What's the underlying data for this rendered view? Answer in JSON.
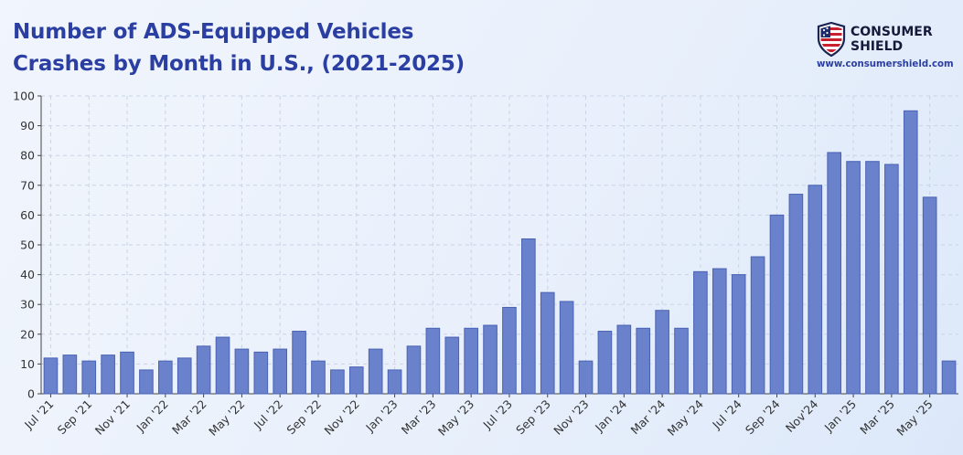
{
  "header": {
    "title_line1": "Number of ADS-Equipped Vehicles",
    "title_line2": "Crashes by Month in U.S., (2021-2025)"
  },
  "brand": {
    "name_line1": "CONSUMER",
    "name_line2": "SHIELD",
    "url": "www.consumershield.com"
  },
  "colors": {
    "title": "#2b3fa2",
    "bar_fill": "#6a81cb",
    "bar_stroke": "#4a62b5",
    "grid": "#c9d3e6"
  },
  "chart_data": {
    "type": "bar",
    "title": "Number of ADS-Equipped Vehicles Crashes by Month in U.S., (2021-2025)",
    "xlabel": "",
    "ylabel": "",
    "ylim": [
      0,
      100
    ],
    "yticks": [
      0,
      10,
      20,
      30,
      40,
      50,
      60,
      70,
      80,
      90,
      100
    ],
    "grid": true,
    "categories": [
      "Jul '21",
      "Aug '21",
      "Sep '21",
      "Oct '21",
      "Nov '21",
      "Dec '21",
      "Jan '22",
      "Feb '22",
      "Mar '22",
      "Apr '22",
      "May '22",
      "Jun '22",
      "Jul '22",
      "Aug '22",
      "Sep '22",
      "Oct '22",
      "Nov '22",
      "Dec '22",
      "Jan '23",
      "Feb '23",
      "Mar '23",
      "Apr '23",
      "May '23",
      "Jun '23",
      "Jul '23",
      "Aug '23",
      "Sep '23",
      "Oct '23",
      "Nov '23",
      "Dec '23",
      "Jan '24",
      "Feb '24",
      "Mar '24",
      "Apr '24",
      "May '24",
      "Jun '24",
      "Jul '24",
      "Aug '24",
      "Sep '24",
      "Oct '24",
      "Nov '24",
      "Dec '24",
      "Jan '25",
      "Feb '25",
      "Mar '25",
      "Apr '25",
      "May '25",
      "Jun '25"
    ],
    "values": [
      12,
      13,
      11,
      13,
      14,
      8,
      11,
      12,
      16,
      19,
      15,
      14,
      15,
      21,
      11,
      8,
      9,
      15,
      8,
      16,
      22,
      19,
      22,
      23,
      29,
      52,
      34,
      31,
      11,
      21,
      23,
      22,
      28,
      22,
      41,
      42,
      40,
      46,
      60,
      67,
      70,
      81,
      78,
      78,
      77,
      95,
      66,
      11
    ],
    "tick_labels": [
      {
        "index": 0,
        "label": "Jul '21"
      },
      {
        "index": 2,
        "label": "Sep '21"
      },
      {
        "index": 4,
        "label": "Nov '21"
      },
      {
        "index": 6,
        "label": "Jan '22"
      },
      {
        "index": 8,
        "label": "Mar '22"
      },
      {
        "index": 10,
        "label": "May '22"
      },
      {
        "index": 12,
        "label": "Jul '22"
      },
      {
        "index": 14,
        "label": "Sep '22"
      },
      {
        "index": 16,
        "label": "Nov '22"
      },
      {
        "index": 18,
        "label": "Jan '23"
      },
      {
        "index": 20,
        "label": "Mar '23"
      },
      {
        "index": 22,
        "label": "May '23"
      },
      {
        "index": 24,
        "label": "Jul '23"
      },
      {
        "index": 26,
        "label": "Sep '23"
      },
      {
        "index": 28,
        "label": "Nov '23"
      },
      {
        "index": 30,
        "label": "Jan '24"
      },
      {
        "index": 32,
        "label": "Mar '24"
      },
      {
        "index": 34,
        "label": "May '24"
      },
      {
        "index": 36,
        "label": "Jul '24"
      },
      {
        "index": 38,
        "label": "Sep '24"
      },
      {
        "index": 40,
        "label": "Nov'24"
      },
      {
        "index": 42,
        "label": "Jan '25"
      },
      {
        "index": 44,
        "label": "Mar '25"
      },
      {
        "index": 46,
        "label": "May '25"
      }
    ]
  }
}
